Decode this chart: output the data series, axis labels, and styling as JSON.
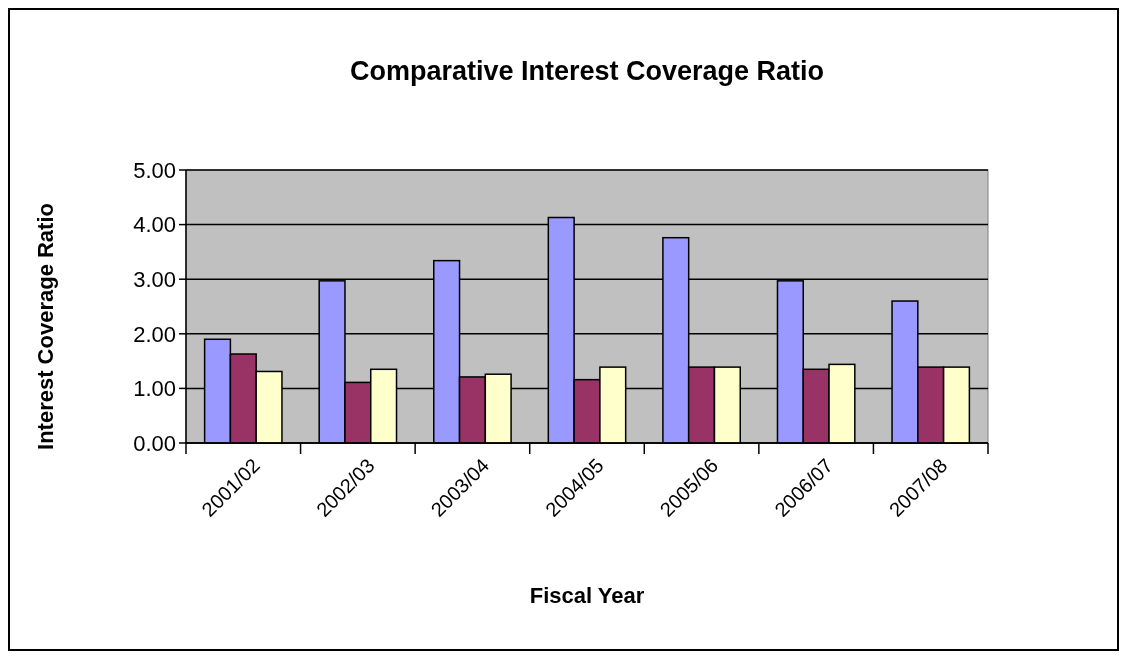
{
  "chart_data": {
    "type": "bar",
    "title": "Comparative Interest Coverage Ratio",
    "xlabel": "Fiscal Year",
    "ylabel": "Interest Coverage Ratio",
    "categories": [
      "2001/02",
      "2002/03",
      "2003/04",
      "2004/05",
      "2005/06",
      "2006/07",
      "2007/08"
    ],
    "series": [
      {
        "color": "#9999ff",
        "values": [
          1.9,
          2.97,
          3.34,
          4.13,
          3.76,
          2.97,
          2.6
        ]
      },
      {
        "color": "#993366",
        "values": [
          1.63,
          1.11,
          1.21,
          1.16,
          1.39,
          1.35,
          1.39
        ]
      },
      {
        "color": "#ffffcc",
        "values": [
          1.31,
          1.35,
          1.26,
          1.39,
          1.39,
          1.44,
          1.39
        ]
      }
    ],
    "ylim": [
      0,
      5
    ],
    "yticks": [
      {
        "value": 0,
        "label": "0.00"
      },
      {
        "value": 1,
        "label": "1.00"
      },
      {
        "value": 2,
        "label": "2.00"
      },
      {
        "value": 3,
        "label": "3.00"
      },
      {
        "value": 4,
        "label": "4.00"
      },
      {
        "value": 5,
        "label": "5.00"
      }
    ],
    "grid": "y"
  }
}
